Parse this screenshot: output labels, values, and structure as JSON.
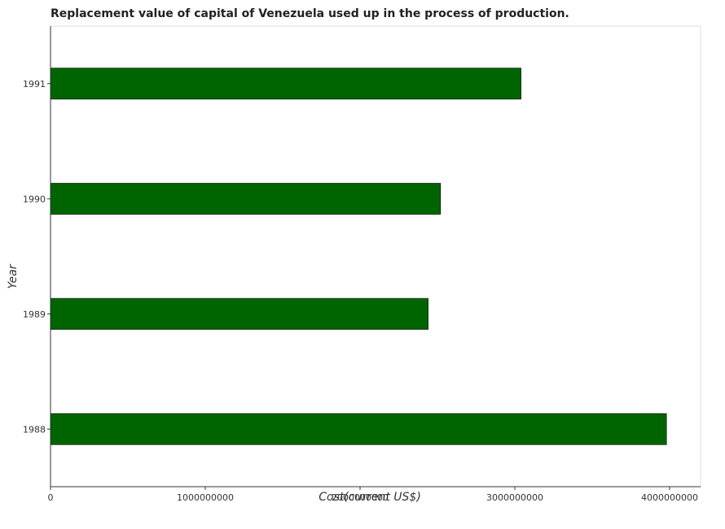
{
  "chart_data": {
    "type": "bar",
    "orientation": "horizontal",
    "title": "Replacement value of capital of Venezuela used up in the process of production.",
    "xlabel": "Cost(current US$)",
    "ylabel": "Year",
    "categories": [
      "1988",
      "1989",
      "1990",
      "1991"
    ],
    "values": [
      3980000000,
      2440000000,
      2520000000,
      3040000000
    ],
    "xlim": [
      0,
      4200000000
    ],
    "x_ticks": [
      0,
      1000000000,
      2000000000,
      3000000000,
      4000000000
    ],
    "x_tick_labels": [
      "0",
      "1000000000",
      "2000000000",
      "3000000000",
      "4000000000"
    ],
    "grid": false,
    "legend": "none",
    "bar_color": "#006400",
    "bar_edge_color": "#000000"
  }
}
